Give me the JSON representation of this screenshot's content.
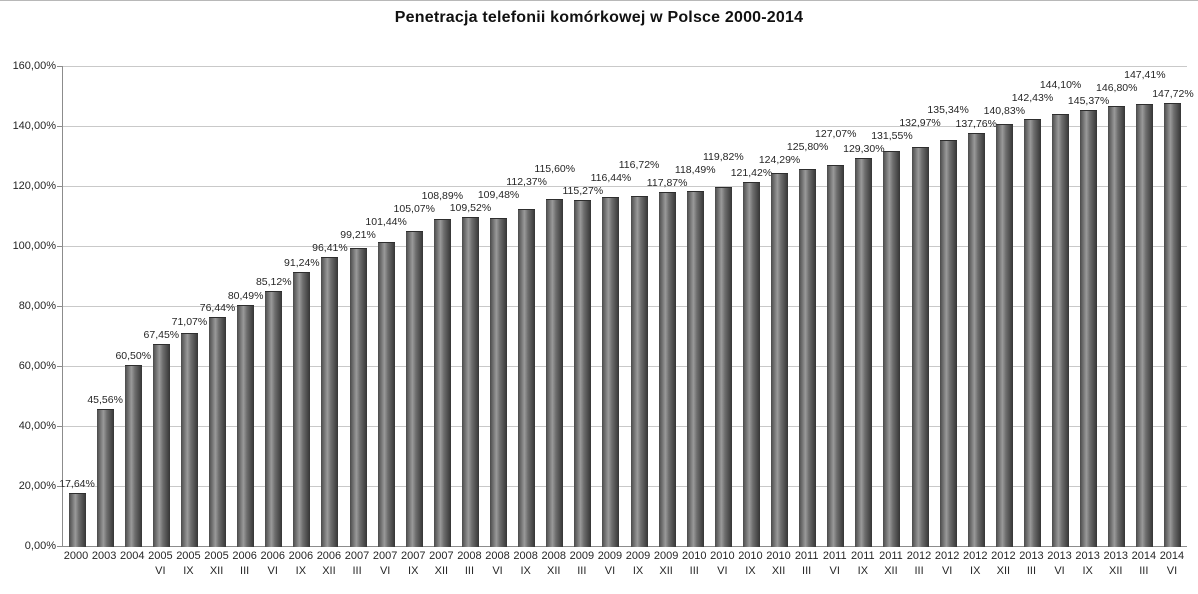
{
  "chart_data": {
    "type": "bar",
    "title": "Penetracja telefonii komórkowej w Polsce 2000-2014",
    "ylabel": "",
    "xlabel": "",
    "ylim": [
      0,
      160
    ],
    "grid": true,
    "legend_position": "none",
    "bar_color": "#4a4a4a",
    "y_ticks": [
      "0,00%",
      "20,00%",
      "40,00%",
      "60,00%",
      "80,00%",
      "100,00%",
      "120,00%",
      "140,00%",
      "160,00%"
    ],
    "categories_year": [
      "2000",
      "2003",
      "2004",
      "2005",
      "2005",
      "2005",
      "2006",
      "2006",
      "2006",
      "2006",
      "2007",
      "2007",
      "2007",
      "2007",
      "2008",
      "2008",
      "2008",
      "2008",
      "2009",
      "2009",
      "2009",
      "2009",
      "2010",
      "2010",
      "2010",
      "2010",
      "2011",
      "2011",
      "2011",
      "2011",
      "2012",
      "2012",
      "2012",
      "2012",
      "2013",
      "2013",
      "2013",
      "2013",
      "2014",
      "2014"
    ],
    "categories_month": [
      "",
      "",
      "",
      "VI",
      "IX",
      "XII",
      "III",
      "VI",
      "IX",
      "XII",
      "III",
      "VI",
      "IX",
      "XII",
      "III",
      "VI",
      "IX",
      "XII",
      "III",
      "VI",
      "IX",
      "XII",
      "III",
      "VI",
      "IX",
      "XII",
      "III",
      "VI",
      "IX",
      "XII",
      "III",
      "VI",
      "IX",
      "XII",
      "III",
      "VI",
      "IX",
      "XII",
      "III",
      "VI"
    ],
    "values": [
      17.64,
      45.56,
      60.5,
      67.45,
      71.07,
      76.44,
      80.49,
      85.12,
      91.24,
      96.41,
      99.21,
      101.44,
      105.07,
      108.89,
      109.52,
      109.48,
      112.37,
      115.6,
      115.27,
      116.44,
      116.72,
      117.87,
      118.49,
      119.82,
      121.42,
      124.29,
      125.8,
      127.07,
      129.3,
      131.55,
      132.97,
      135.34,
      137.76,
      140.83,
      142.43,
      144.1,
      145.37,
      146.8,
      147.41,
      147.72
    ],
    "value_labels": [
      "17,64%",
      "45,56%",
      "60,50%",
      "67,45%",
      "71,07%",
      "76,44%",
      "80,49%",
      "85,12%",
      "91,24%",
      "96,41%",
      "99,21%",
      "101,44%",
      "105,07%",
      "108,89%",
      "109,52%",
      "109,48%",
      "112,37%",
      "115,60%",
      "115,27%",
      "116,44%",
      "116,72%",
      "117,87%",
      "118,49%",
      "119,82%",
      "121,42%",
      "124,29%",
      "125,80%",
      "127,07%",
      "129,30%",
      "131,55%",
      "132,97%",
      "135,34%",
      "137,76%",
      "140,83%",
      "142,43%",
      "144,10%",
      "145,37%",
      "146,80%",
      "147,41%",
      "147,72%"
    ]
  }
}
